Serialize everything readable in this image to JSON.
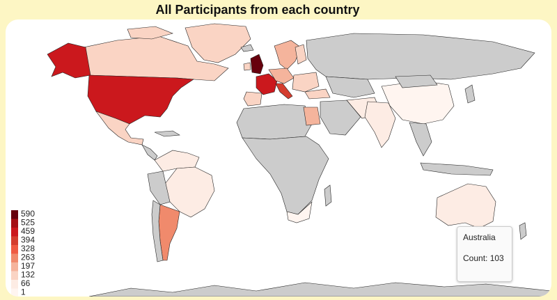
{
  "title": "All Participants from each country",
  "legend": {
    "ticks": [
      "590",
      "525",
      "459",
      "394",
      "328",
      "263",
      "197",
      "132",
      "66",
      "1"
    ],
    "colors": [
      "#67000d",
      "#a50f15",
      "#cb181d",
      "#d43d2e",
      "#ef5a42",
      "#f08a6c",
      "#f5b49c",
      "#fad4c4",
      "#fdece4",
      "#fff5f0"
    ]
  },
  "tooltip": {
    "country": "Australia",
    "count_label": "Count: 103"
  },
  "colors": {
    "no_data": "#cccccc",
    "background": "#fdf6c4",
    "card": "#ffffff"
  },
  "countries": [
    {
      "name": "United Kingdom",
      "count": 590
    },
    {
      "name": "United States",
      "count": 500
    },
    {
      "name": "Alaska (United States)",
      "count": 500
    },
    {
      "name": "France",
      "count": 470
    },
    {
      "name": "Italy",
      "count": 440
    },
    {
      "name": "Argentina",
      "count": 300
    },
    {
      "name": "Sweden/Norway",
      "count": 220
    },
    {
      "name": "Egypt",
      "count": 200
    },
    {
      "name": "Canada",
      "count": 150
    },
    {
      "name": "Greenland",
      "count": 140
    },
    {
      "name": "Mexico",
      "count": 140
    },
    {
      "name": "Brazil",
      "count": 100
    },
    {
      "name": "Australia",
      "count": 103
    },
    {
      "name": "China",
      "count": 30
    },
    {
      "name": "India",
      "count": 70
    },
    {
      "name": "South Africa",
      "count": 20
    }
  ]
}
